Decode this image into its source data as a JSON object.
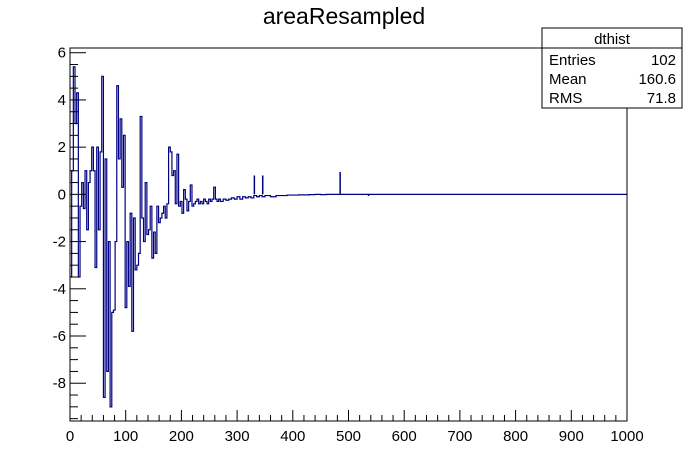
{
  "chart_data": {
    "type": "histogram",
    "title": "areaResampled",
    "xlabel": "",
    "ylabel": "",
    "xlim": [
      0,
      1000
    ],
    "ylim": [
      -9.6,
      6.2
    ],
    "x_ticks": [
      "0",
      "100",
      "200",
      "300",
      "400",
      "500",
      "600",
      "700",
      "800",
      "900",
      "1000"
    ],
    "y_ticks": [
      "-8",
      "-6",
      "-4",
      "-2",
      "0",
      "2",
      "4",
      "6"
    ],
    "grid": false,
    "line_color": "#000080",
    "stats_box": {
      "name": "dthist",
      "rows": [
        {
          "label": "Entries",
          "value": "102"
        },
        {
          "label": "Mean",
          "value": "160.6"
        },
        {
          "label": "RMS",
          "value": "71.8"
        }
      ]
    },
    "points": [
      [
        0,
        -3.5
      ],
      [
        3,
        1
      ],
      [
        6,
        5.4
      ],
      [
        9,
        3
      ],
      [
        12,
        4.3
      ],
      [
        15,
        -3.5
      ],
      [
        18,
        -0.5
      ],
      [
        21,
        0.5
      ],
      [
        24,
        -0.6
      ],
      [
        27,
        1
      ],
      [
        30,
        -1.5
      ],
      [
        33,
        0.5
      ],
      [
        36,
        1
      ],
      [
        39,
        2
      ],
      [
        42,
        1
      ],
      [
        45,
        -3.1
      ],
      [
        48,
        2
      ],
      [
        51,
        -1.5
      ],
      [
        54,
        1.8
      ],
      [
        57,
        5
      ],
      [
        60,
        -8.6
      ],
      [
        63,
        1.5
      ],
      [
        66,
        -7.5
      ],
      [
        69,
        -2
      ],
      [
        72,
        -9
      ],
      [
        75,
        -5
      ],
      [
        78,
        -4.9
      ],
      [
        81,
        -2
      ],
      [
        84,
        4.6
      ],
      [
        87,
        1.5
      ],
      [
        90,
        3.2
      ],
      [
        93,
        0.3
      ],
      [
        96,
        2.5
      ],
      [
        99,
        -4.8
      ],
      [
        102,
        -2
      ],
      [
        105,
        -3.9
      ],
      [
        108,
        -0.8
      ],
      [
        111,
        -5.8
      ],
      [
        114,
        -1
      ],
      [
        117,
        -3.2
      ],
      [
        120,
        -3
      ],
      [
        123,
        -2.5
      ],
      [
        126,
        3.3
      ],
      [
        129,
        -1
      ],
      [
        132,
        -2
      ],
      [
        135,
        0.5
      ],
      [
        138,
        -1.7
      ],
      [
        141,
        -1.5
      ],
      [
        144,
        -0.5
      ],
      [
        147,
        -2.7
      ],
      [
        150,
        -1.6
      ],
      [
        153,
        -2.5
      ],
      [
        156,
        -0.5
      ],
      [
        159,
        -1.2
      ],
      [
        162,
        -1
      ],
      [
        165,
        -0.8
      ],
      [
        168,
        -0.5
      ],
      [
        171,
        -1
      ],
      [
        174,
        -0.4
      ],
      [
        177,
        2
      ],
      [
        180,
        1.8
      ],
      [
        183,
        0.8
      ],
      [
        186,
        1
      ],
      [
        189,
        -0.4
      ],
      [
        192,
        1.7
      ],
      [
        195,
        -0.5
      ],
      [
        198,
        -0.3
      ],
      [
        201,
        -0.8
      ],
      [
        204,
        0.2
      ],
      [
        207,
        -0.2
      ],
      [
        210,
        -0.7
      ],
      [
        213,
        -0.3
      ],
      [
        216,
        0.4
      ],
      [
        219,
        -0.5
      ],
      [
        222,
        -0.4
      ],
      [
        225,
        -0.3
      ],
      [
        228,
        -0.2
      ],
      [
        231,
        -0.4
      ],
      [
        234,
        -0.3
      ],
      [
        237,
        -0.4
      ],
      [
        240,
        -0.2
      ],
      [
        243,
        -0.3
      ],
      [
        246,
        -0.4
      ],
      [
        249,
        -0.2
      ],
      [
        252,
        -0.3
      ],
      [
        255,
        -0.2
      ],
      [
        258,
        0.3
      ],
      [
        261,
        -0.2
      ],
      [
        264,
        -0.3
      ],
      [
        267,
        -0.2
      ],
      [
        270,
        -0.3
      ],
      [
        275,
        -0.2
      ],
      [
        280,
        -0.25
      ],
      [
        285,
        -0.2
      ],
      [
        290,
        -0.15
      ],
      [
        295,
        -0.2
      ],
      [
        300,
        -0.1
      ],
      [
        305,
        -0.2
      ],
      [
        310,
        -0.1
      ],
      [
        315,
        -0.15
      ],
      [
        320,
        -0.1
      ],
      [
        325,
        -0.15
      ],
      [
        330,
        -0.05
      ],
      [
        335,
        -0.1
      ],
      [
        340,
        -0.05
      ],
      [
        345,
        -0.1
      ],
      [
        350,
        -0.05
      ],
      [
        360,
        -0.1
      ],
      [
        370,
        -0.05
      ],
      [
        380,
        -0.05
      ],
      [
        390,
        -0.03
      ],
      [
        400,
        -0.03
      ],
      [
        410,
        -0.02
      ],
      [
        420,
        -0.02
      ],
      [
        430,
        -0.01
      ],
      [
        440,
        0
      ],
      [
        450,
        -0.01
      ],
      [
        460,
        0
      ],
      [
        470,
        0
      ],
      [
        480,
        0
      ],
      [
        490,
        0
      ],
      [
        500,
        0
      ],
      [
        510,
        0
      ],
      [
        520,
        0
      ],
      [
        530,
        0
      ],
      [
        540,
        0
      ],
      [
        550,
        0
      ],
      [
        1000,
        0
      ]
    ],
    "spikes": [
      {
        "x": 331,
        "y": 0.8
      },
      {
        "x": 346,
        "y": 0.8
      },
      {
        "x": 485,
        "y": 0.95
      },
      {
        "x": 536,
        "y": -0.07
      }
    ]
  }
}
